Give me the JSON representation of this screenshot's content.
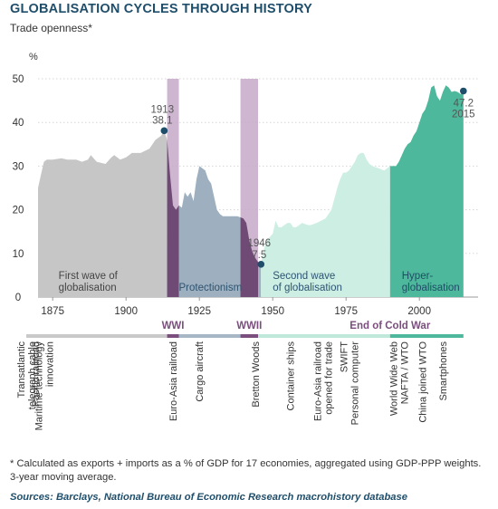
{
  "header": {
    "title": "GLOBALISATION CYCLES THROUGH HISTORY",
    "subtitle": "Trade openness*"
  },
  "chart_data": {
    "type": "area",
    "ylabel": "%",
    "ylim": [
      0,
      50
    ],
    "xlim": [
      1870,
      2020
    ],
    "yticks": [
      0,
      10,
      20,
      30,
      40,
      50
    ],
    "xticks": [
      1875,
      1900,
      1925,
      1950,
      1975,
      2000
    ],
    "series": [
      {
        "name": "",
        "color": "#c6c6c6",
        "x_range": [
          1870,
          1914
        ],
        "x": [
          1870,
          1871,
          1872,
          1873,
          1875,
          1878,
          1880,
          1883,
          1885,
          1887,
          1888,
          1890,
          1893,
          1895,
          1896,
          1898,
          1900,
          1902,
          1905,
          1908,
          1909,
          1910,
          1911,
          1912,
          1913,
          1914
        ],
        "y": [
          25,
          28,
          31,
          31.5,
          31.5,
          31.8,
          31.5,
          31.5,
          31,
          31.5,
          32.5,
          31,
          30.5,
          32,
          32.5,
          31.5,
          32,
          33,
          33,
          34,
          35,
          36,
          36.5,
          37,
          38.1,
          36
        ]
      },
      {
        "name": "",
        "color": "#9eafbf",
        "x_range": [
          1914,
          1946
        ],
        "x": [
          1914,
          1915,
          1916,
          1917,
          1918,
          1919,
          1920,
          1921,
          1922,
          1923,
          1924,
          1925,
          1926,
          1927,
          1928,
          1929,
          1930,
          1931,
          1932,
          1933,
          1935,
          1938,
          1940,
          1941,
          1942,
          1943,
          1944,
          1945,
          1946
        ],
        "y": [
          36,
          28,
          21,
          20,
          21,
          20.5,
          24,
          23,
          24,
          22,
          27,
          30,
          29.5,
          29,
          27,
          26,
          23,
          20,
          19,
          18.5,
          18.5,
          18.5,
          18,
          17,
          13,
          10.5,
          9,
          8,
          7.5
        ]
      },
      {
        "name": "",
        "color": "#cdeee3",
        "x_range": [
          1946,
          1990
        ],
        "x": [
          1946,
          1947,
          1948,
          1950,
          1951,
          1952,
          1953,
          1955,
          1956,
          1957,
          1958,
          1960,
          1962,
          1963,
          1965,
          1968,
          1970,
          1972,
          1973,
          1974,
          1975,
          1976,
          1978,
          1979,
          1980,
          1981,
          1982,
          1983,
          1984,
          1986,
          1988,
          1990
        ],
        "y": [
          7.5,
          11,
          13,
          14.5,
          17.5,
          16,
          16,
          17,
          17,
          16,
          16,
          17,
          16.5,
          16.5,
          17,
          18,
          20,
          25,
          27,
          28.5,
          28.5,
          29,
          31,
          32.5,
          33,
          33,
          31.5,
          30.5,
          30,
          29.5,
          29,
          30
        ]
      },
      {
        "name": "",
        "color": "#4db89b",
        "x_range": [
          1990,
          2015
        ],
        "x": [
          1990,
          1991,
          1992,
          1993,
          1995,
          1996,
          1997,
          1998,
          1999,
          2000,
          2001,
          2002,
          2003,
          2004,
          2005,
          2006,
          2007,
          2008,
          2009,
          2010,
          2011,
          2012,
          2013,
          2014,
          2015
        ],
        "y": [
          30,
          30,
          30,
          31,
          34,
          35,
          35.5,
          37,
          38,
          40,
          42,
          43,
          45,
          48,
          48.5,
          46,
          45,
          47,
          48.5,
          48,
          47,
          47.2,
          47,
          46.5,
          47.2
        ]
      }
    ],
    "annotations": [
      {
        "year": "1913",
        "value": "38.1",
        "x": 1913,
        "y": 38.1
      },
      {
        "year": "1946",
        "value": "7.5",
        "x": 1946,
        "y": 7.5
      },
      {
        "year": "2015",
        "value": "47.2",
        "x": 2015,
        "y": 47.2
      }
    ],
    "war_bands": [
      {
        "label": "WWI",
        "start": 1914,
        "end": 1918
      },
      {
        "label": "WWII",
        "start": 1939,
        "end": 1945
      }
    ],
    "period_labels": [
      {
        "text": [
          "First wave of",
          "globalisation"
        ],
        "x": 1877,
        "color": "#444444"
      },
      {
        "text": [
          "Protectionism"
        ],
        "x": 1918,
        "color": "#2d5470"
      },
      {
        "text": [
          "Second wave",
          "of globalisation"
        ],
        "x": 1950,
        "color": "#2d5470"
      },
      {
        "text": [
          "Hyper-",
          "globalisation"
        ],
        "x": 1994,
        "color": "#1e4e66"
      }
    ],
    "timeline": {
      "era_labels": [
        {
          "text": "WWI",
          "x": 1916
        },
        {
          "text": "WWII",
          "x": 1942
        },
        {
          "text": "End of Cold War",
          "x": 1990
        }
      ],
      "segments": [
        {
          "start": 1866,
          "end": 1914,
          "color": "#c9c9c9"
        },
        {
          "start": 1914,
          "end": 1918,
          "color": "#7a4f7d"
        },
        {
          "start": 1918,
          "end": 1939,
          "color": "#a7b6c4"
        },
        {
          "start": 1939,
          "end": 1945,
          "color": "#7a4f7d"
        },
        {
          "start": 1945,
          "end": 1990,
          "color": "#bfe8da"
        },
        {
          "start": 1990,
          "end": 2015,
          "color": "#4db89b"
        }
      ],
      "events": [
        {
          "x": 1866,
          "lines": [
            "Transatlantic",
            "telegraph cable"
          ]
        },
        {
          "x": 1869,
          "lines": [
            "Pacific railroad"
          ]
        },
        {
          "x": 1872,
          "lines": [
            "Maritime technology",
            "innovation"
          ]
        },
        {
          "x": 1916,
          "lines": [
            "Euro-Asia railroad"
          ]
        },
        {
          "x": 1925,
          "lines": [
            "Cargo aircraft"
          ]
        },
        {
          "x": 1944,
          "lines": [
            "Bretton Woods"
          ]
        },
        {
          "x": 1956,
          "lines": [
            "Container ships"
          ]
        },
        {
          "x": 1967,
          "lines": [
            "Euro-Asia railroad",
            "opened for trade"
          ]
        },
        {
          "x": 1976,
          "lines": [
            "SWIFT",
            "Personal computer"
          ]
        },
        {
          "x": 1993,
          "lines": [
            "World Wide Web",
            "NAFTA / WTO"
          ]
        },
        {
          "x": 2001,
          "lines": [
            "China joined WTO"
          ]
        },
        {
          "x": 2008,
          "lines": [
            "Smartphones"
          ]
        }
      ]
    }
  },
  "footer": {
    "footnote": "* Calculated as exports + imports as a % of GDP for 17 economies, aggregated using GDP-PPP weights. 3-year moving average.",
    "sources": "Sources: Barclays, National Bureau of Economic Research macrohistory database"
  }
}
